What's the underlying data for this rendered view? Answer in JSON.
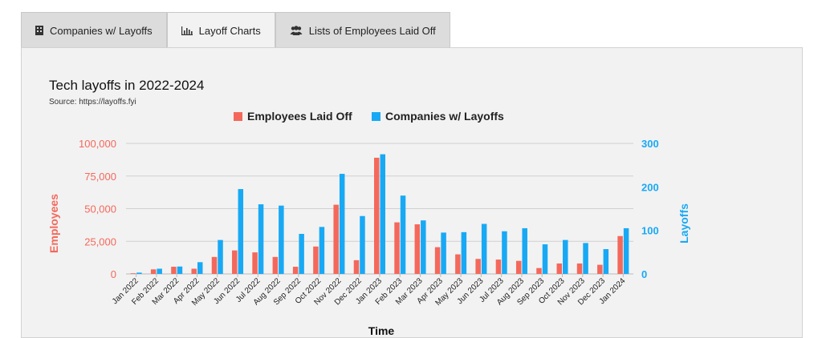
{
  "tabs": [
    {
      "label": "Companies w/ Layoffs",
      "icon": "building-icon"
    },
    {
      "label": "Layoff Charts",
      "icon": "bar-chart-icon"
    },
    {
      "label": "Lists of Employees Laid Off",
      "icon": "users-icon"
    }
  ],
  "active_tab": 1,
  "colors": {
    "employees": "#f4685b",
    "companies": "#18a9f5"
  },
  "chart_data": {
    "type": "bar",
    "title": "Tech layoffs in 2022-2024",
    "subtitle": "Source: https://layoffs.fyi",
    "xlabel": "Time",
    "categories": [
      "Jan 2022",
      "Feb 2022",
      "Mar 2022",
      "Apr 2022",
      "May 2022",
      "Jun 2022",
      "Jul 2022",
      "Aug 2022",
      "Sep 2022",
      "Oct 2022",
      "Nov 2022",
      "Dec 2022",
      "Jan 2023",
      "Feb 2023",
      "Mar 2023",
      "Apr 2023",
      "May 2023",
      "Jun 2023",
      "Jul 2023",
      "Aug 2023",
      "Sep 2023",
      "Oct 2023",
      "Nov 2023",
      "Dec 2023",
      "Jan 2024"
    ],
    "series": [
      {
        "name": "Employees Laid Off",
        "axis": "left",
        "values": [
          500,
          3500,
          5500,
          4000,
          13000,
          18000,
          16500,
          13000,
          5500,
          21000,
          53000,
          10500,
          89000,
          39500,
          38000,
          20500,
          15000,
          11500,
          11000,
          10000,
          4500,
          8000,
          8000,
          7000,
          29000
        ]
      },
      {
        "name": "Companies w/ Layoffs",
        "axis": "right",
        "values": [
          3,
          12,
          17,
          27,
          78,
          195,
          160,
          157,
          92,
          108,
          230,
          133,
          275,
          180,
          123,
          95,
          96,
          115,
          98,
          105,
          68,
          78,
          71,
          57,
          105
        ]
      }
    ],
    "y_left": {
      "label": "Employees",
      "ylim": [
        0,
        100000
      ],
      "ticks": [
        0,
        25000,
        50000,
        75000,
        100000
      ],
      "tick_labels": [
        "0",
        "25,000",
        "50,000",
        "75,000",
        "100,000"
      ]
    },
    "y_right": {
      "label": "Layoffs",
      "ylim": [
        0,
        300
      ],
      "ticks": [
        0,
        100,
        200,
        300
      ],
      "tick_labels": [
        "0",
        "100",
        "200",
        "300"
      ]
    },
    "legend": "top-center",
    "grid": true
  }
}
